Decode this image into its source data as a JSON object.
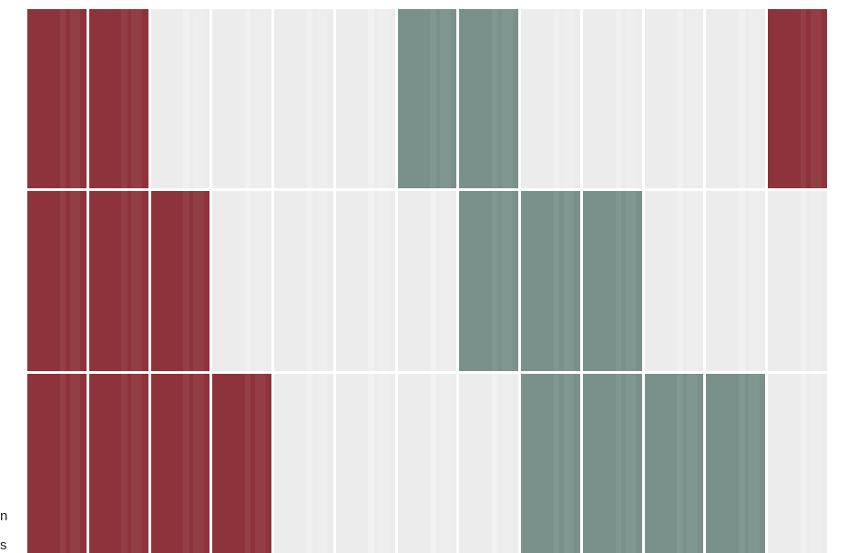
{
  "colors": {
    "red": "#8e333c",
    "green": "#7a918b",
    "blank": "#ececec"
  },
  "grid": {
    "rows": [
      [
        "red",
        "red",
        "blank",
        "blank",
        "blank",
        "blank",
        "green",
        "green",
        "blank",
        "blank",
        "blank",
        "blank",
        "red"
      ],
      [
        "red",
        "red",
        "red",
        "blank",
        "blank",
        "blank",
        "blank",
        "green",
        "green",
        "green",
        "blank",
        "blank",
        "blank"
      ],
      [
        "red",
        "red",
        "red",
        "red",
        "blank",
        "blank",
        "blank",
        "blank",
        "green",
        "green",
        "green",
        "green",
        "blank"
      ]
    ]
  },
  "side_text": {
    "line1": "n",
    "line2": "s"
  }
}
